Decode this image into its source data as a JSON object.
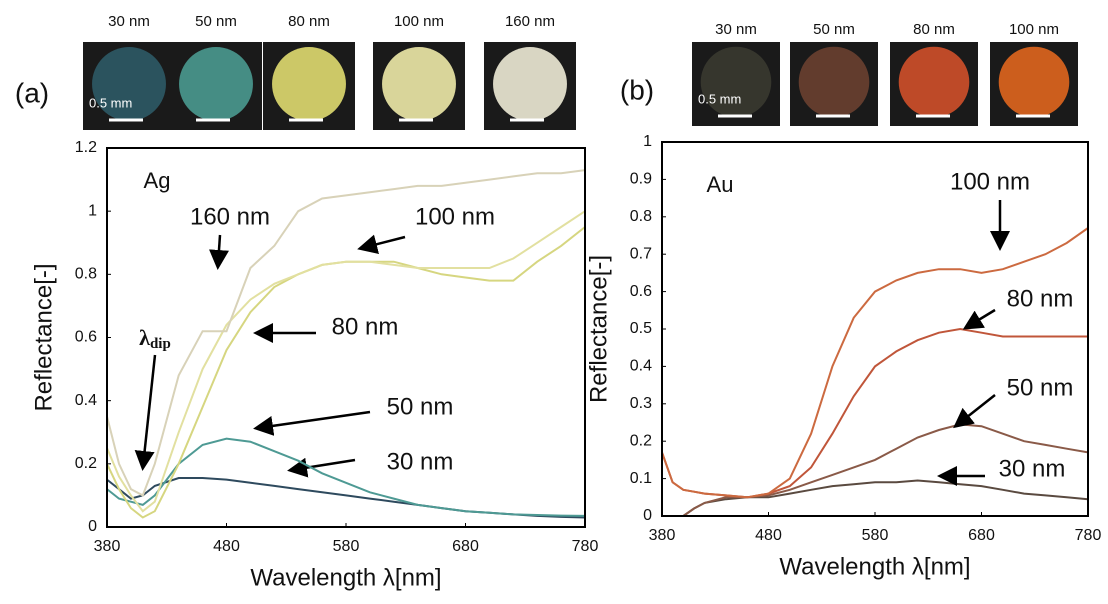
{
  "chart_data": [
    {
      "type": "line",
      "panel": "(a)",
      "material": "Ag",
      "xlabel": "Wavelength λ[nm]",
      "ylabel": "Reflectance[-]",
      "scale_bar": "0.5 mm",
      "swatches": [
        {
          "label": "30 nm",
          "color": "#2d5a66"
        },
        {
          "label": "50 nm",
          "color": "#4a9a90"
        },
        {
          "label": "80 nm",
          "color": "#e0dc70"
        },
        {
          "label": "100 nm",
          "color": "#eeeaa8"
        },
        {
          "label": "160 nm",
          "color": "#eeebd6"
        }
      ],
      "dip_label": {
        "symbol": "λ",
        "sub": "dip"
      },
      "x": [
        380,
        390,
        400,
        410,
        420,
        440,
        460,
        480,
        500,
        520,
        540,
        560,
        580,
        600,
        620,
        640,
        660,
        680,
        700,
        720,
        740,
        760,
        780
      ],
      "series": [
        {
          "name": "30 nm",
          "color": "#2e4a5e",
          "values": [
            0.15,
            0.12,
            0.09,
            0.1,
            0.13,
            0.155,
            0.155,
            0.15,
            0.14,
            0.13,
            0.12,
            0.11,
            0.1,
            0.09,
            0.08,
            0.07,
            0.06,
            0.05,
            0.045,
            0.04,
            0.035,
            0.032,
            0.03
          ]
        },
        {
          "name": "50 nm",
          "color": "#4e9a94",
          "values": [
            0.12,
            0.09,
            0.08,
            0.07,
            0.1,
            0.2,
            0.26,
            0.28,
            0.27,
            0.24,
            0.21,
            0.17,
            0.14,
            0.11,
            0.09,
            0.07,
            0.06,
            0.05,
            0.045,
            0.04,
            0.038,
            0.036,
            0.035
          ]
        },
        {
          "name": "80 nm",
          "color": "#d6d680",
          "values": [
            0.2,
            0.12,
            0.06,
            0.03,
            0.05,
            0.2,
            0.38,
            0.56,
            0.68,
            0.76,
            0.8,
            0.83,
            0.84,
            0.84,
            0.84,
            0.82,
            0.8,
            0.79,
            0.78,
            0.78,
            0.84,
            0.89,
            0.95
          ]
        },
        {
          "name": "100 nm",
          "color": "#e2e0a0",
          "values": [
            0.25,
            0.16,
            0.1,
            0.05,
            0.08,
            0.3,
            0.5,
            0.64,
            0.72,
            0.77,
            0.8,
            0.83,
            0.84,
            0.84,
            0.83,
            0.82,
            0.82,
            0.82,
            0.82,
            0.85,
            0.9,
            0.95,
            1.0
          ]
        },
        {
          "name": "160 nm",
          "color": "#d8d2b8",
          "values": [
            0.35,
            0.2,
            0.12,
            0.1,
            0.2,
            0.48,
            0.62,
            0.62,
            0.82,
            0.89,
            1.0,
            1.04,
            1.05,
            1.06,
            1.07,
            1.08,
            1.08,
            1.09,
            1.1,
            1.11,
            1.12,
            1.12,
            1.13
          ]
        }
      ],
      "xlim": [
        380,
        780
      ],
      "xticks": [
        380,
        480,
        580,
        680,
        780
      ],
      "ylim": [
        0,
        1.2
      ],
      "yticks": [
        0,
        0.2,
        0.4,
        0.6,
        0.8,
        1,
        1.2
      ]
    },
    {
      "type": "line",
      "panel": "(b)",
      "material": "Au",
      "xlabel": "Wavelength λ[nm]",
      "ylabel": "Reflectance[-]",
      "scale_bar": "0.5 mm",
      "swatches": [
        {
          "label": "30 nm",
          "color": "#3a3a30"
        },
        {
          "label": "50 nm",
          "color": "#6a4030"
        },
        {
          "label": "80 nm",
          "color": "#d0502a"
        },
        {
          "label": "100 nm",
          "color": "#e0661e"
        }
      ],
      "x": [
        380,
        390,
        400,
        410,
        420,
        440,
        460,
        480,
        500,
        520,
        540,
        560,
        580,
        600,
        620,
        640,
        660,
        680,
        700,
        720,
        740,
        760,
        780
      ],
      "series": [
        {
          "name": "30 nm",
          "color": "#5a4a40",
          "values": [
            null,
            null,
            0,
            0.02,
            0.035,
            0.045,
            0.05,
            0.05,
            0.06,
            0.07,
            0.08,
            0.085,
            0.09,
            0.09,
            0.095,
            0.09,
            0.085,
            0.08,
            0.07,
            0.06,
            0.055,
            0.05,
            0.045
          ]
        },
        {
          "name": "50 nm",
          "color": "#8a5a48",
          "values": [
            null,
            null,
            0,
            0.02,
            0.035,
            0.05,
            0.05,
            0.055,
            0.07,
            0.09,
            0.11,
            0.13,
            0.15,
            0.18,
            0.21,
            0.23,
            0.245,
            0.24,
            0.22,
            0.2,
            0.19,
            0.18,
            0.17
          ]
        },
        {
          "name": "80 nm",
          "color": "#c0563a",
          "values": [
            0.17,
            0.09,
            0.07,
            0.065,
            0.06,
            0.055,
            0.05,
            0.06,
            0.08,
            0.13,
            0.22,
            0.32,
            0.4,
            0.44,
            0.47,
            0.49,
            0.5,
            0.49,
            0.48,
            0.48,
            0.48,
            0.48,
            0.48
          ]
        },
        {
          "name": "100 nm",
          "color": "#cc6a40",
          "values": [
            0.17,
            0.09,
            0.07,
            0.065,
            0.06,
            0.055,
            0.05,
            0.06,
            0.1,
            0.22,
            0.4,
            0.53,
            0.6,
            0.63,
            0.65,
            0.66,
            0.66,
            0.65,
            0.66,
            0.68,
            0.7,
            0.73,
            0.77
          ]
        }
      ],
      "xlim": [
        380,
        780
      ],
      "xticks": [
        380,
        480,
        580,
        680,
        780
      ],
      "ylim": [
        0,
        1
      ],
      "yticks": [
        0,
        0.1,
        0.2,
        0.3,
        0.4,
        0.5,
        0.6,
        0.7,
        0.8,
        0.9,
        1
      ]
    }
  ]
}
